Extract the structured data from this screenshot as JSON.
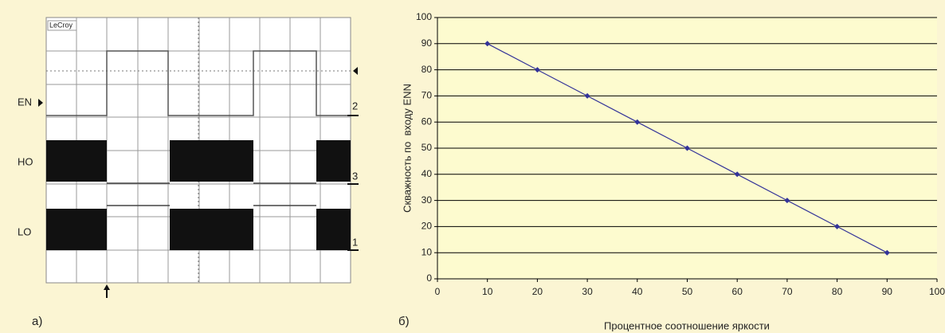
{
  "oscilloscope": {
    "brand": "LeCroy",
    "channels": [
      {
        "name": "EN",
        "number": "2"
      },
      {
        "name": "HO",
        "number": "3"
      },
      {
        "name": "LO",
        "number": "1"
      }
    ]
  },
  "panel_labels": [
    "а)",
    "б)"
  ],
  "chart_data": {
    "type": "line",
    "x_label": "Процентное соотношение яркости",
    "y_label": "Скважность по  входу ENN",
    "x": [
      10,
      20,
      30,
      40,
      50,
      60,
      70,
      80,
      90
    ],
    "values": [
      90,
      80,
      70,
      60,
      50,
      40,
      30,
      20,
      10
    ],
    "color": "#333399",
    "xlim": [
      0,
      100
    ],
    "xticks": [
      0,
      10,
      20,
      30,
      40,
      50,
      60,
      70,
      80,
      90,
      100
    ],
    "ylim": [
      0,
      100
    ],
    "yticks": [
      0,
      10,
      20,
      30,
      40,
      50,
      60,
      70,
      80,
      90,
      100
    ],
    "grid": true
  }
}
